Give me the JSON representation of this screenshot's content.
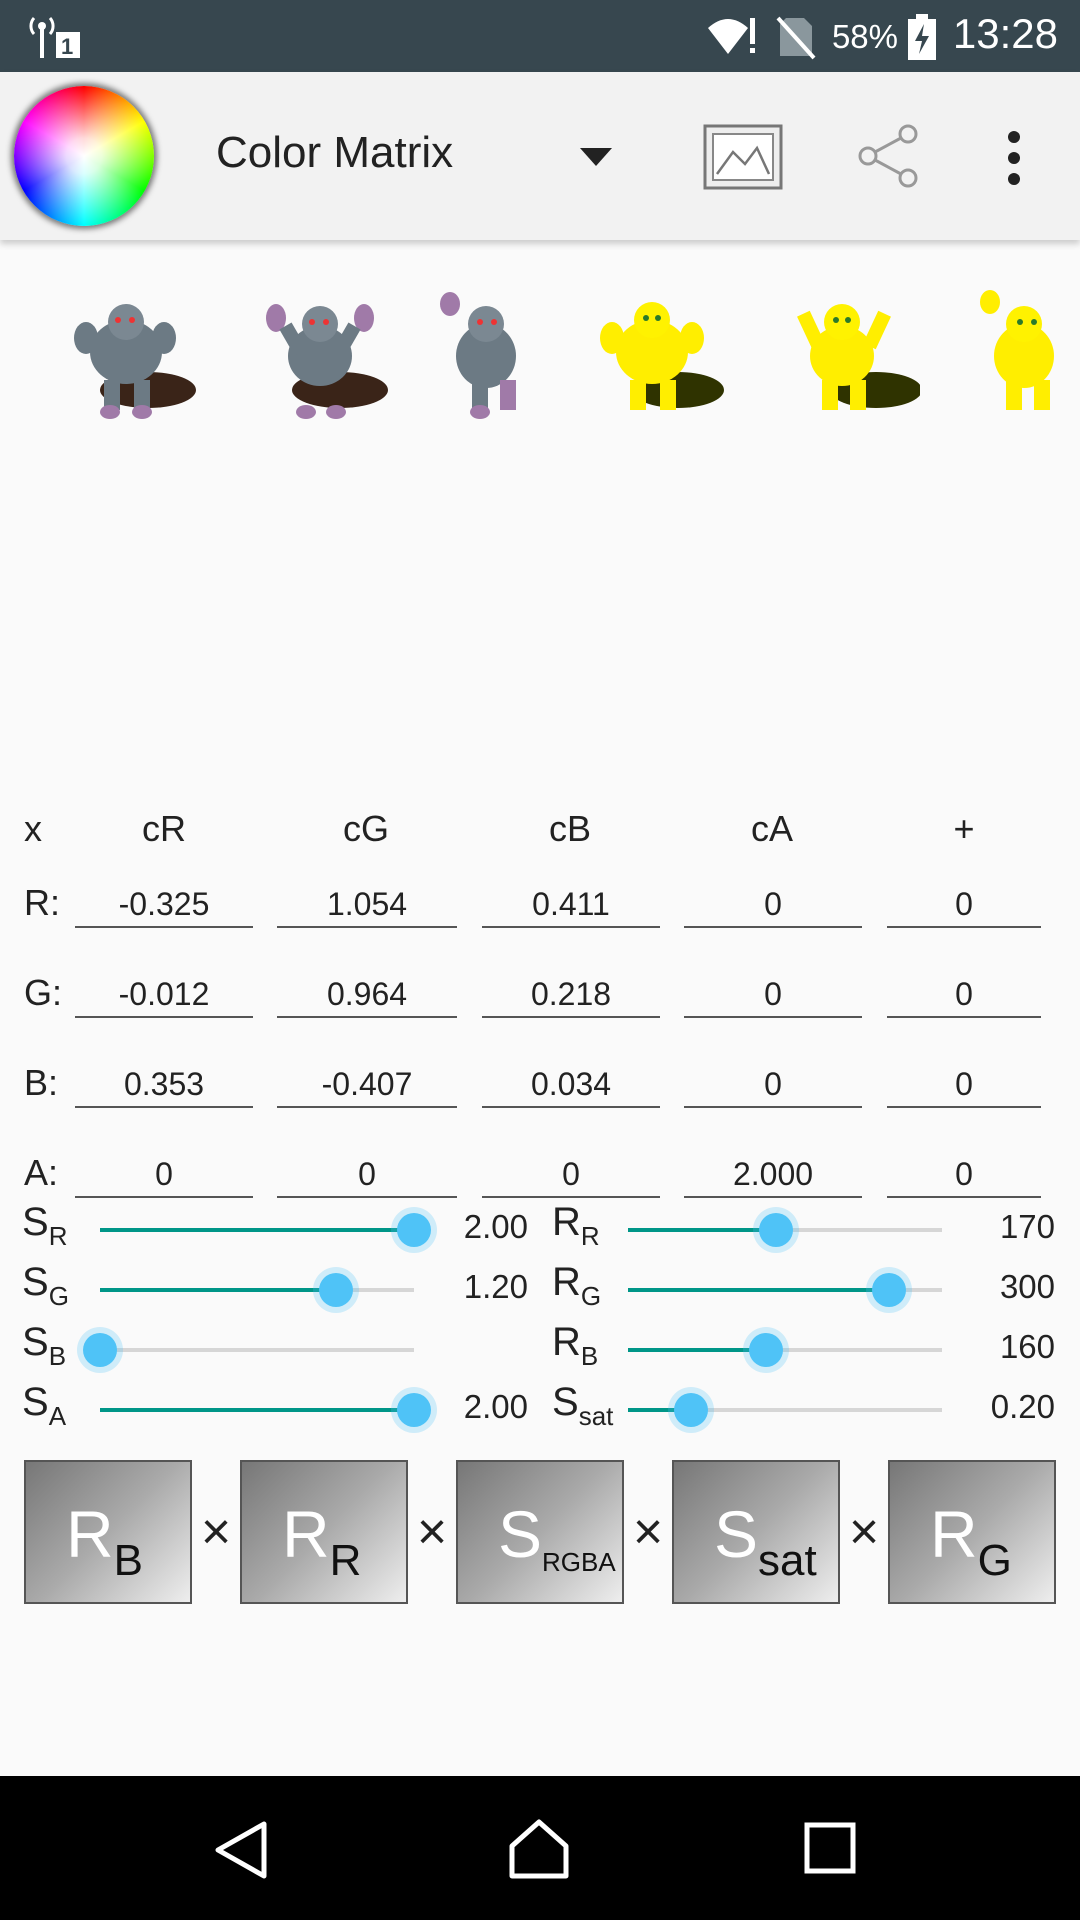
{
  "status_bar": {
    "battery_percent": "58%",
    "time": "13:28",
    "sim_slot": "1"
  },
  "toolbar": {
    "title": "Color Matrix"
  },
  "matrix": {
    "row_label": "x",
    "columns": [
      "cR",
      "cG",
      "cB",
      "cA",
      "+"
    ],
    "rows": [
      {
        "label": "R:",
        "values": [
          "-0.325",
          "1.054",
          "0.411",
          "0",
          "0"
        ]
      },
      {
        "label": "G:",
        "values": [
          "-0.012",
          "0.964",
          "0.218",
          "0",
          "0"
        ]
      },
      {
        "label": "B:",
        "values": [
          "0.353",
          "-0.407",
          "0.034",
          "0",
          "0"
        ]
      },
      {
        "label": "A:",
        "values": [
          "0",
          "0",
          "0",
          "2.000",
          "0"
        ]
      }
    ]
  },
  "sliders": {
    "left": [
      {
        "main": "S",
        "sub": "R",
        "value": "2.00",
        "fraction": 1.0
      },
      {
        "main": "S",
        "sub": "G",
        "value": "1.20",
        "fraction": 0.75
      },
      {
        "main": "S",
        "sub": "B",
        "value": "",
        "fraction": 0.0
      },
      {
        "main": "S",
        "sub": "A",
        "value": "2.00",
        "fraction": 1.0
      }
    ],
    "right": [
      {
        "main": "R",
        "sub": "R",
        "value": "170",
        "fraction": 0.47
      },
      {
        "main": "R",
        "sub": "G",
        "value": "300",
        "fraction": 0.83
      },
      {
        "main": "R",
        "sub": "B",
        "value": "160",
        "fraction": 0.44
      },
      {
        "main": "S",
        "sub": "sat",
        "value": "0.20",
        "fraction": 0.2
      }
    ]
  },
  "product": {
    "operator": "×",
    "items": [
      {
        "main": "R",
        "sub": "B"
      },
      {
        "main": "R",
        "sub": "R"
      },
      {
        "main": "S",
        "sub": "RGBA"
      },
      {
        "main": "S",
        "sub": "sat"
      },
      {
        "main": "R",
        "sub": "G"
      }
    ]
  }
}
